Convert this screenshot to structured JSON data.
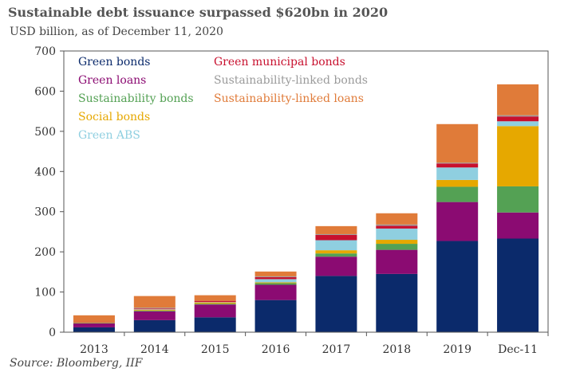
{
  "title": "Sustainable debt issuance surpassed $620bn  in 2020",
  "subtitle": "USD billion,  as of December 11, 2020",
  "source": "Source: Bloomberg, IIF",
  "chart_data": {
    "type": "bar",
    "stacked": true,
    "categories": [
      "2013",
      "2014",
      "2015",
      "2016",
      "2017",
      "2018",
      "2019",
      "Dec-11"
    ],
    "ylim": [
      0,
      700
    ],
    "yticks": [
      0,
      100,
      200,
      300,
      400,
      500,
      600,
      700
    ],
    "ytick_labels": [
      "0",
      "100",
      "200",
      "300",
      "400",
      "500",
      "600",
      "700"
    ],
    "legend_position": "top-left inside plot",
    "series": [
      {
        "name": "Green bonds",
        "color": "#0b2a6b",
        "values": [
          12,
          30,
          37,
          80,
          140,
          145,
          227,
          233
        ]
      },
      {
        "name": "Green loans",
        "color": "#8b0b72",
        "values": [
          10,
          22,
          32,
          38,
          48,
          60,
          97,
          65
        ]
      },
      {
        "name": "Sustainability bonds",
        "color": "#54a154",
        "values": [
          1,
          2,
          2,
          4,
          8,
          15,
          38,
          65
        ]
      },
      {
        "name": "Social bonds",
        "color": "#e6a800",
        "values": [
          1,
          2,
          3,
          2,
          8,
          10,
          17,
          150
        ]
      },
      {
        "name": "Green ABS",
        "color": "#8fcfe0",
        "values": [
          0,
          1,
          1,
          8,
          25,
          28,
          31,
          12
        ]
      },
      {
        "name": "Green municipal  bonds",
        "color": "#c8102e",
        "values": [
          1,
          2,
          3,
          5,
          13,
          7,
          10,
          12
        ]
      },
      {
        "name": "Sustainability-linked bonds",
        "color": "#9a9a9a",
        "values": [
          0,
          2,
          0,
          2,
          2,
          3,
          2,
          3
        ]
      },
      {
        "name": "Sustainability-linked loans",
        "color": "#e07b39",
        "values": [
          17,
          29,
          14,
          12,
          20,
          28,
          96,
          77
        ]
      }
    ]
  }
}
